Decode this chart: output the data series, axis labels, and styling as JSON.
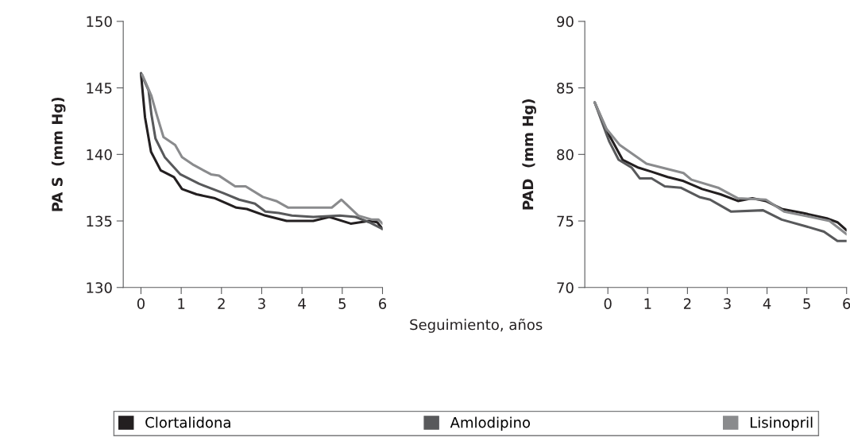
{
  "chart_data": [
    {
      "type": "line",
      "ylabel": "PA S  (mm Hg)",
      "xlabel": "Seguimiento, años",
      "xlim": [
        -0.44,
        6
      ],
      "ylim": [
        130,
        150
      ],
      "xticks": [
        0,
        1,
        2,
        3,
        4,
        5,
        6
      ],
      "yticks": [
        130,
        135,
        140,
        145,
        150
      ],
      "grid": false,
      "legend": "bottom",
      "marker": "none",
      "line_style": "solid",
      "series": [
        {
          "name": "Clortalidona",
          "color": "#231f20",
          "x": [
            0,
            0.1,
            0.25,
            0.49,
            0.82,
            1.02,
            1.38,
            1.84,
            2.37,
            2.63,
            3.09,
            3.62,
            4.28,
            4.68,
            5.21,
            5.67,
            5.87,
            6
          ],
          "values": [
            146.1,
            142.8,
            140.2,
            138.8,
            138.3,
            137.4,
            137.0,
            136.7,
            136.0,
            135.9,
            135.4,
            135.0,
            135.0,
            135.3,
            134.8,
            135.0,
            134.9,
            134.4
          ]
        },
        {
          "name": "Amlodipino",
          "color": "#58595b",
          "x": [
            0,
            0.19,
            0.26,
            0.36,
            0.59,
            0.98,
            1.44,
            2.04,
            2.44,
            2.83,
            3.09,
            3.42,
            3.75,
            4.28,
            4.94,
            5.33,
            5.67,
            6
          ],
          "values": [
            146.1,
            144.8,
            143.0,
            141.2,
            139.8,
            138.5,
            137.8,
            137.1,
            136.6,
            136.3,
            135.7,
            135.6,
            135.4,
            135.3,
            135.4,
            135.3,
            134.9,
            134.4
          ]
        },
        {
          "name": "Lisinopril",
          "color": "#8a8b8d",
          "x": [
            0.03,
            0.26,
            0.39,
            0.56,
            0.85,
            1.02,
            1.31,
            1.74,
            1.94,
            2.34,
            2.6,
            3.03,
            3.36,
            3.66,
            4.74,
            4.98,
            5.4,
            5.74,
            5.9,
            6
          ],
          "values": [
            146.0,
            144.4,
            143.0,
            141.3,
            140.7,
            139.8,
            139.2,
            138.5,
            138.4,
            137.6,
            137.6,
            136.8,
            136.5,
            136.0,
            136.0,
            136.6,
            135.4,
            135.1,
            135.1,
            134.8
          ]
        }
      ]
    },
    {
      "type": "line",
      "ylabel": "PAD  (mm Hg)",
      "xlim": [
        -0.58,
        6
      ],
      "ylim": [
        70,
        90
      ],
      "xticks": [
        0,
        1,
        2,
        3,
        4,
        5,
        6
      ],
      "yticks": [
        70,
        75,
        80,
        85,
        90
      ],
      "grid": false,
      "legend": "bottom",
      "marker": "none",
      "line_style": "solid",
      "series": [
        {
          "name": "Clortalidona",
          "color": "#231f20",
          "x": [
            -0.33,
            -0.03,
            0.37,
            0.77,
            1.1,
            1.5,
            1.9,
            2.37,
            2.83,
            3.27,
            3.63,
            3.97,
            4.37,
            4.9,
            5.5,
            5.77,
            6
          ],
          "values": [
            83.9,
            81.8,
            79.6,
            79.0,
            78.7,
            78.3,
            78.0,
            77.4,
            77.0,
            76.5,
            76.7,
            76.5,
            75.9,
            75.6,
            75.2,
            74.9,
            74.3
          ]
        },
        {
          "name": "Amlodipino",
          "color": "#58595b",
          "x": [
            -0.33,
            0.03,
            0.27,
            0.6,
            0.8,
            1.1,
            1.43,
            1.83,
            2.3,
            2.57,
            3.1,
            3.9,
            4.37,
            4.97,
            5.43,
            5.77,
            6
          ],
          "values": [
            83.9,
            81.0,
            79.6,
            79.0,
            78.2,
            78.2,
            77.6,
            77.5,
            76.8,
            76.6,
            75.7,
            75.8,
            75.1,
            74.6,
            74.2,
            73.5,
            73.5
          ]
        },
        {
          "name": "Lisinopril",
          "color": "#8a8b8d",
          "x": [
            -0.33,
            -0.03,
            0.3,
            0.97,
            1.9,
            2.1,
            2.77,
            3.27,
            3.97,
            4.43,
            5.1,
            5.57,
            6
          ],
          "values": [
            83.9,
            81.9,
            80.7,
            79.3,
            78.6,
            78.1,
            77.5,
            76.7,
            76.6,
            75.7,
            75.3,
            75.0,
            74.0
          ]
        }
      ]
    }
  ]
}
